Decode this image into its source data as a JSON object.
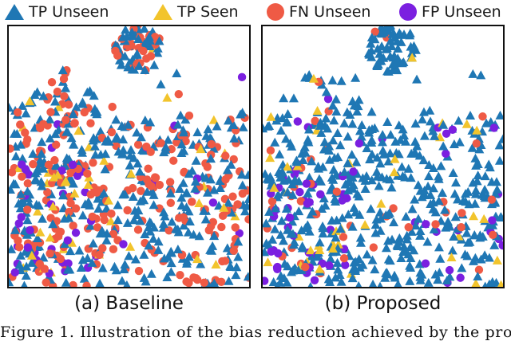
{
  "legend": [
    {
      "label": "TP Unseen",
      "shape": "triangle",
      "color": "#1f77b4",
      "icon": "triangle-marker-icon"
    },
    {
      "label": "TP Seen",
      "shape": "triangle",
      "color": "#f2c42c",
      "icon": "triangle-marker-icon"
    },
    {
      "label": "FN Unseen",
      "shape": "circle",
      "color": "#ef5a45",
      "icon": "circle-marker-icon"
    },
    {
      "label": "FP Unseen",
      "shape": "circle",
      "color": "#7b1fe0",
      "icon": "circle-marker-icon"
    }
  ],
  "captions": {
    "a": "(a) Baseline",
    "b": "(b) Proposed",
    "figure": "Figure 1. Illustration of the bias reduction achieved by the pro-"
  },
  "chart_data": [
    {
      "type": "scatter",
      "title": "(a) Baseline",
      "xlabel": "",
      "ylabel": "",
      "grid": false,
      "legend_position": "top",
      "series": [
        {
          "name": "TP Unseen",
          "marker": "triangle",
          "color": "#1f77b4",
          "approx_count": 430,
          "mix_share": 0.56
        },
        {
          "name": "TP Seen",
          "marker": "triangle",
          "color": "#f2c42c",
          "approx_count": 45,
          "mix_share": 0.05
        },
        {
          "name": "FN Unseen",
          "marker": "circle",
          "color": "#ef5a45",
          "approx_count": 260,
          "mix_share": 0.35
        },
        {
          "name": "FP Unseen",
          "marker": "circle",
          "color": "#7b1fe0",
          "approx_count": 45,
          "mix_share": 0.04
        }
      ]
    },
    {
      "type": "scatter",
      "title": "(b) Proposed",
      "xlabel": "",
      "ylabel": "",
      "grid": false,
      "legend_position": "top",
      "series": [
        {
          "name": "TP Unseen",
          "marker": "triangle",
          "color": "#1f77b4",
          "approx_count": 560,
          "mix_share": 0.86
        },
        {
          "name": "TP Seen",
          "marker": "triangle",
          "color": "#f2c42c",
          "approx_count": 40,
          "mix_share": 0.05
        },
        {
          "name": "FN Unseen",
          "marker": "circle",
          "color": "#ef5a45",
          "approx_count": 40,
          "mix_share": 0.04
        },
        {
          "name": "FP Unseen",
          "marker": "circle",
          "color": "#7b1fe0",
          "approx_count": 65,
          "mix_share": 0.05
        }
      ]
    }
  ]
}
